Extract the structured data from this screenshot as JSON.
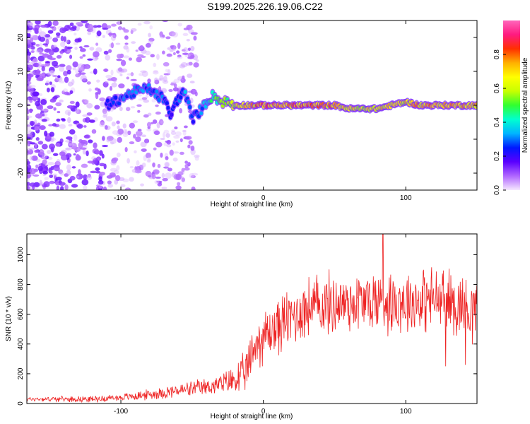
{
  "figure": {
    "title": "S199.2025.226.19.06.C22"
  },
  "chart_data": [
    {
      "type": "heatmap",
      "xlabel": "Height of straight line (km)",
      "ylabel": "Frequency (Hz)",
      "xlim": [
        -166,
        150
      ],
      "ylim": [
        -25,
        25
      ],
      "xticks": [
        -100,
        0,
        100
      ],
      "yticks": [
        -20,
        -10,
        0,
        10,
        20
      ],
      "colorbar": {
        "label": "Normalized spectral amplitude",
        "range": [
          0,
          1
        ],
        "ticks": [
          0.0,
          0.2,
          0.4,
          0.6,
          0.8
        ],
        "colormap": [
          "#f6e8ff",
          "#b066ff",
          "#5a00ff",
          "#0018ff",
          "#00b4ff",
          "#00ffd0",
          "#30ff30",
          "#c8ff00",
          "#ffff00",
          "#ffb000",
          "#ff3000",
          "#ff1a80",
          "#ff66bb"
        ]
      },
      "ridge": {
        "x": [
          -110,
          -100,
          -90,
          -80,
          -75,
          -70,
          -65,
          -60,
          -55,
          -50,
          -45,
          -40,
          -35,
          -30,
          -25,
          -20,
          -10,
          0,
          10,
          20,
          30,
          40,
          50,
          60,
          70,
          80,
          90,
          100,
          110,
          120,
          130,
          140,
          150
        ],
        "frequency": [
          0,
          2,
          4,
          5,
          3,
          2,
          -3,
          2,
          4,
          -4,
          -2,
          1,
          3,
          1,
          1,
          0,
          0,
          0,
          0,
          0,
          0,
          0,
          0,
          -1,
          -1,
          -1,
          0,
          1,
          0,
          0,
          0,
          0,
          0
        ],
        "amplitude": [
          0.25,
          0.3,
          0.35,
          0.3,
          0.35,
          0.3,
          0.25,
          0.3,
          0.35,
          0.3,
          0.3,
          0.4,
          0.5,
          0.55,
          0.6,
          0.65,
          0.75,
          0.85,
          0.85,
          0.85,
          0.82,
          0.8,
          0.78,
          0.72,
          0.7,
          0.7,
          0.75,
          0.72,
          0.78,
          0.8,
          0.8,
          0.75,
          0.72
        ]
      }
    },
    {
      "type": "line",
      "xlabel": "Height of straight line (km)",
      "ylabel": "SNR (10 * v/v)",
      "xlim": [
        -166,
        150
      ],
      "ylim": [
        0,
        1140
      ],
      "xticks": [
        -100,
        0,
        100
      ],
      "yticks": [
        0,
        200,
        400,
        600,
        800,
        1000
      ],
      "color": "#ee2222",
      "trend": {
        "x": [
          -166,
          -140,
          -120,
          -100,
          -80,
          -60,
          -40,
          -25,
          -15,
          -10,
          -8,
          -5,
          0,
          5,
          10,
          20,
          30,
          40,
          60,
          80,
          100,
          120,
          140,
          150
        ],
        "snr": [
          30,
          30,
          30,
          40,
          60,
          85,
          110,
          140,
          180,
          250,
          350,
          400,
          450,
          480,
          520,
          580,
          640,
          660,
          680,
          690,
          690,
          700,
          660,
          640
        ]
      },
      "noise": {
        "x": [
          -166,
          -100,
          -30,
          -10,
          0,
          30,
          150
        ],
        "amplitude": [
          12,
          20,
          55,
          130,
          160,
          180,
          190
        ]
      },
      "peaks": {
        "x": [
          84,
          128,
          142
        ],
        "snr": [
          1140,
          250,
          260
        ]
      }
    }
  ]
}
